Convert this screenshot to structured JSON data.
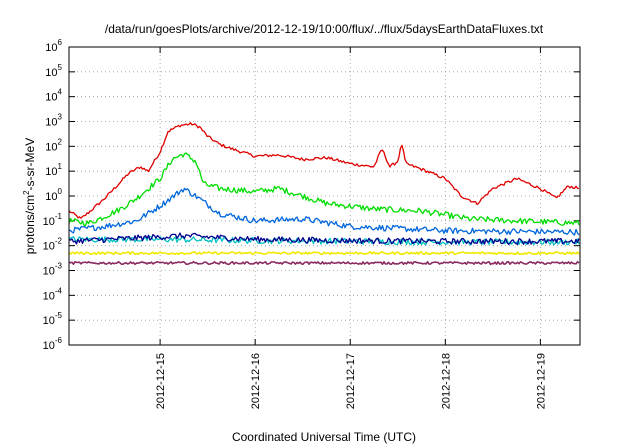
{
  "chart_data": {
    "type": "line",
    "title": "/data/run/goesPlots/archive/2012-12-19/10:00/flux/../flux/5daysEarthDataFluxes.txt",
    "xlabel": "Coordinated Universal Time (UTC)",
    "ylabel": "protons/cm²-s-sr-MeV",
    "ylabel_parts": {
      "base": "protons/cm",
      "sup": "2",
      "rest": "-s-sr-MeV"
    },
    "y_scale": "log",
    "ylim": [
      1e-06,
      1000000.0
    ],
    "xlim": [
      "2012-12-14 01:00",
      "2012-12-19 10:00"
    ],
    "x_ticks": [
      "2012-12-15",
      "2012-12-16",
      "2012-12-17",
      "2012-12-18",
      "2012-12-19"
    ],
    "y_ticks": [
      {
        "base": "10",
        "exp": "-6"
      },
      {
        "base": "10",
        "exp": "-5"
      },
      {
        "base": "10",
        "exp": "-4"
      },
      {
        "base": "10",
        "exp": "-3"
      },
      {
        "base": "10",
        "exp": "-2"
      },
      {
        "base": "10",
        "exp": "-1"
      },
      {
        "base": "10",
        "exp": "0"
      },
      {
        "base": "10",
        "exp": "1"
      },
      {
        "base": "10",
        "exp": "2"
      },
      {
        "base": "10",
        "exp": "3"
      },
      {
        "base": "10",
        "exp": "4"
      },
      {
        "base": "10",
        "exp": "5"
      },
      {
        "base": "10",
        "exp": "6"
      }
    ],
    "grid": true,
    "legend": "none",
    "series": [
      {
        "color": "#e00000",
        "points": [
          [
            "2012-12-14 01:00",
            0.25
          ],
          [
            "2012-12-14 04:00",
            0.12
          ],
          [
            "2012-12-14 07:00",
            0.3
          ],
          [
            "2012-12-14 10:00",
            0.8
          ],
          [
            "2012-12-14 13:00",
            2.5
          ],
          [
            "2012-12-14 16:00",
            8
          ],
          [
            "2012-12-14 19:00",
            15
          ],
          [
            "2012-12-14 21:00",
            10
          ],
          [
            "2012-12-15 00:00",
            60
          ],
          [
            "2012-12-15 02:00",
            400
          ],
          [
            "2012-12-15 05:00",
            700
          ],
          [
            "2012-12-15 08:00",
            800
          ],
          [
            "2012-12-15 10:00",
            600
          ],
          [
            "2012-12-15 12:00",
            250
          ],
          [
            "2012-12-15 15:00",
            120
          ],
          [
            "2012-12-15 18:00",
            80
          ],
          [
            "2012-12-16 00:00",
            40
          ],
          [
            "2012-12-16 06:00",
            45
          ],
          [
            "2012-12-16 12:00",
            30
          ],
          [
            "2012-12-16 18:00",
            35
          ],
          [
            "2012-12-17 00:00",
            20
          ],
          [
            "2012-12-17 06:00",
            15
          ],
          [
            "2012-12-17 08:00",
            80
          ],
          [
            "2012-12-17 10:00",
            15
          ],
          [
            "2012-12-17 12:00",
            25
          ],
          [
            "2012-12-17 13:00",
            130
          ],
          [
            "2012-12-17 14:00",
            20
          ],
          [
            "2012-12-17 18:00",
            12
          ],
          [
            "2012-12-18 00:00",
            5
          ],
          [
            "2012-12-18 04:00",
            1
          ],
          [
            "2012-12-18 08:00",
            0.5
          ],
          [
            "2012-12-18 12:00",
            2
          ],
          [
            "2012-12-18 18:00",
            5
          ],
          [
            "2012-12-19 00:00",
            2
          ],
          [
            "2012-12-19 04:00",
            0.8
          ],
          [
            "2012-12-19 07:00",
            2.5
          ],
          [
            "2012-12-19 10:00",
            2
          ]
        ]
      },
      {
        "color": "#00dd00",
        "points": [
          [
            "2012-12-14 01:00",
            0.1
          ],
          [
            "2012-12-14 06:00",
            0.08
          ],
          [
            "2012-12-14 10:00",
            0.15
          ],
          [
            "2012-12-14 14:00",
            0.3
          ],
          [
            "2012-12-14 18:00",
            0.8
          ],
          [
            "2012-12-15 00:00",
            5
          ],
          [
            "2012-12-15 03:00",
            30
          ],
          [
            "2012-12-15 06:00",
            50
          ],
          [
            "2012-12-15 09:00",
            25
          ],
          [
            "2012-12-15 11:00",
            3
          ],
          [
            "2012-12-15 15:00",
            2
          ],
          [
            "2012-12-16 00:00",
            1.5
          ],
          [
            "2012-12-16 06:00",
            2
          ],
          [
            "2012-12-16 12:00",
            1
          ],
          [
            "2012-12-16 18:00",
            0.5
          ],
          [
            "2012-12-17 06:00",
            0.3
          ],
          [
            "2012-12-17 18:00",
            0.25
          ],
          [
            "2012-12-18 06:00",
            0.12
          ],
          [
            "2012-12-18 18:00",
            0.1
          ],
          [
            "2012-12-19 10:00",
            0.08
          ]
        ]
      },
      {
        "color": "#0066dd",
        "points": [
          [
            "2012-12-14 01:00",
            0.04
          ],
          [
            "2012-12-14 10:00",
            0.06
          ],
          [
            "2012-12-14 18:00",
            0.1
          ],
          [
            "2012-12-15 00:00",
            0.4
          ],
          [
            "2012-12-15 06:00",
            2
          ],
          [
            "2012-12-15 09:00",
            1
          ],
          [
            "2012-12-15 15:00",
            0.2
          ],
          [
            "2012-12-16 00:00",
            0.1
          ],
          [
            "2012-12-16 12:00",
            0.12
          ],
          [
            "2012-12-17 00:00",
            0.06
          ],
          [
            "2012-12-18 00:00",
            0.04
          ],
          [
            "2012-12-19 10:00",
            0.035
          ]
        ]
      },
      {
        "color": "#00c0c0",
        "points": [
          [
            "2012-12-14 01:00",
            0.018
          ],
          [
            "2012-12-15 00:00",
            0.018
          ],
          [
            "2012-12-16 00:00",
            0.016
          ],
          [
            "2012-12-17 00:00",
            0.015
          ],
          [
            "2012-12-18 00:00",
            0.014
          ],
          [
            "2012-12-19 10:00",
            0.014
          ]
        ]
      },
      {
        "color": "#000090",
        "points": [
          [
            "2012-12-14 01:00",
            0.015
          ],
          [
            "2012-12-15 06:00",
            0.025
          ],
          [
            "2012-12-16 00:00",
            0.018
          ],
          [
            "2012-12-17 00:00",
            0.016
          ],
          [
            "2012-12-18 00:00",
            0.015
          ],
          [
            "2012-12-19 10:00",
            0.015
          ]
        ]
      },
      {
        "color": "#f0e800",
        "points": [
          [
            "2012-12-14 01:00",
            0.005
          ],
          [
            "2012-12-15 00:00",
            0.005
          ],
          [
            "2012-12-16 00:00",
            0.005
          ],
          [
            "2012-12-17 00:00",
            0.005
          ],
          [
            "2012-12-18 00:00",
            0.005
          ],
          [
            "2012-12-19 10:00",
            0.005
          ]
        ]
      },
      {
        "color": "#8a2a60",
        "points": [
          [
            "2012-12-14 01:00",
            0.002
          ],
          [
            "2012-12-15 00:00",
            0.002
          ],
          [
            "2012-12-16 00:00",
            0.002
          ],
          [
            "2012-12-17 00:00",
            0.002
          ],
          [
            "2012-12-18 00:00",
            0.002
          ],
          [
            "2012-12-19 10:00",
            0.002
          ]
        ]
      }
    ]
  }
}
